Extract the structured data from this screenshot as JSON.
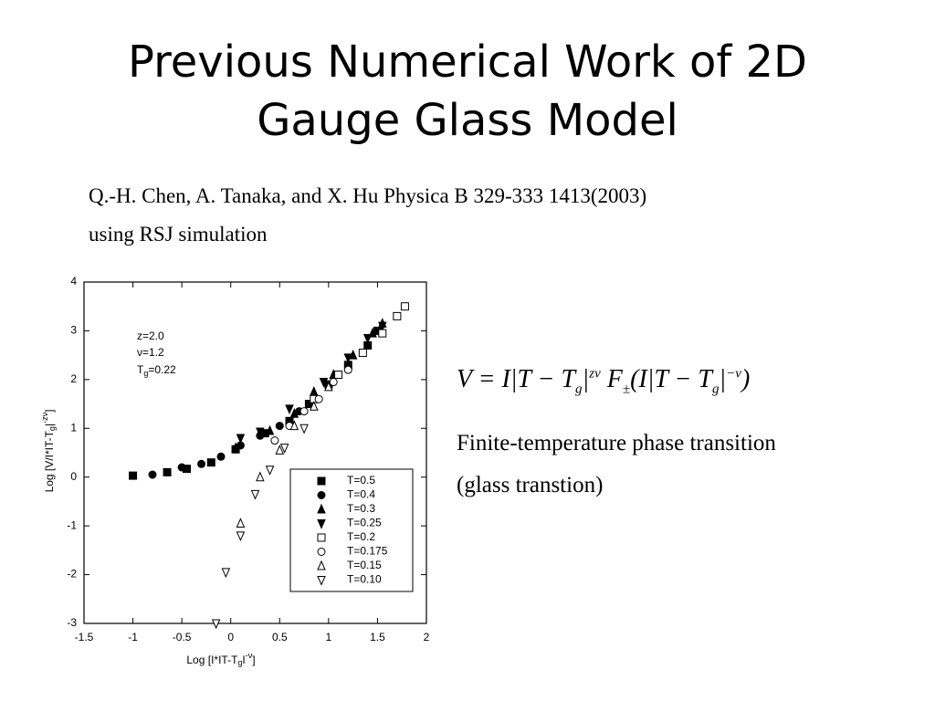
{
  "title": [
    "Previous Numerical Work of 2D",
    "Gauge Glass Model"
  ],
  "citation": [
    "Q.-H.  Chen,  A.  Tanaka,  and  X.  Hu  Physica  B  329-333 1413(2003)",
    "using  RSJ  simulation"
  ],
  "equation": [
    "V = I|T − T",
    "g",
    "|",
    "zν",
    " F",
    "±",
    "(I|T − T",
    "g",
    "|",
    "−ν",
    ")"
  ],
  "notes": [
    "Finite-temperature  phase  transition",
    "(glass  transtion)"
  ],
  "chart_data": {
    "type": "scatter",
    "xlabel": [
      "Log [I*IT-T",
      "g",
      "I",
      "-ν",
      "]"
    ],
    "ylabel": [
      "Log [V/I*IT-T",
      "g",
      "|",
      "-zν",
      "]"
    ],
    "annotation": [
      "z=2.0",
      "ν=1.2",
      "T",
      "g",
      "=0.22"
    ],
    "xlim": [
      -1.5,
      2
    ],
    "ylim": [
      -3,
      4
    ],
    "xticks": [
      -1.5,
      -1,
      -0.5,
      0,
      0.5,
      1,
      1.5,
      2
    ],
    "yticks": [
      -3,
      -2,
      -1,
      0,
      1,
      2,
      3,
      4
    ],
    "series": [
      {
        "name": "T=0.5",
        "color": "#000000",
        "marker": "square",
        "filled": true,
        "x": [
          -1.0,
          -0.65,
          -0.45,
          -0.2,
          0.05,
          0.35,
          0.6,
          0.8,
          1.0,
          1.2,
          1.4,
          1.5
        ],
        "values": [
          0.03,
          0.1,
          0.17,
          0.3,
          0.57,
          0.9,
          1.15,
          1.5,
          1.9,
          2.3,
          2.7,
          3.0
        ]
      },
      {
        "name": "T=0.4",
        "color": "#000000",
        "marker": "circle",
        "filled": true,
        "x": [
          -0.8,
          -0.5,
          -0.3,
          -0.1,
          0.1,
          0.3,
          0.5,
          0.7
        ],
        "values": [
          0.05,
          0.2,
          0.27,
          0.42,
          0.65,
          0.85,
          1.05,
          1.35
        ]
      },
      {
        "name": "T=0.3",
        "color": "#000000",
        "marker": "triangle-up",
        "filled": true,
        "x": [
          0.05,
          0.4,
          0.65,
          0.85,
          1.05,
          1.25,
          1.45,
          1.55
        ],
        "values": [
          0.6,
          0.95,
          1.3,
          1.75,
          2.1,
          2.5,
          2.95,
          3.15
        ]
      },
      {
        "name": "T=0.25",
        "color": "#000000",
        "marker": "triangle-down",
        "filled": true,
        "x": [
          0.1,
          0.3,
          0.6,
          0.95,
          1.2,
          1.4,
          1.55
        ],
        "values": [
          0.8,
          0.93,
          1.4,
          1.95,
          2.45,
          2.85,
          3.1
        ]
      },
      {
        "name": "T=0.2",
        "color": "#000000",
        "marker": "square",
        "filled": false,
        "x": [
          0.85,
          1.1,
          1.35,
          1.55,
          1.7,
          1.78
        ],
        "values": [
          1.6,
          2.1,
          2.55,
          2.95,
          3.3,
          3.5
        ]
      },
      {
        "name": "T=0.175",
        "color": "#000000",
        "marker": "circle",
        "filled": false,
        "x": [
          0.45,
          0.6,
          0.75,
          0.9,
          1.05,
          1.2
        ],
        "values": [
          0.75,
          1.05,
          1.35,
          1.6,
          1.95,
          2.2
        ]
      },
      {
        "name": "T=0.15",
        "color": "#000000",
        "marker": "triangle-up",
        "filled": false,
        "x": [
          0.1,
          0.3,
          0.5,
          0.65,
          0.85,
          1.0
        ],
        "values": [
          -0.95,
          0.0,
          0.55,
          1.05,
          1.45,
          1.85
        ]
      },
      {
        "name": "T=0.10",
        "color": "#000000",
        "marker": "triangle-down",
        "filled": false,
        "x": [
          -0.15,
          -0.05,
          0.1,
          0.25,
          0.4,
          0.55,
          0.75
        ],
        "values": [
          -3.0,
          -1.95,
          -1.2,
          -0.35,
          0.15,
          0.6,
          1.0
        ]
      }
    ]
  }
}
